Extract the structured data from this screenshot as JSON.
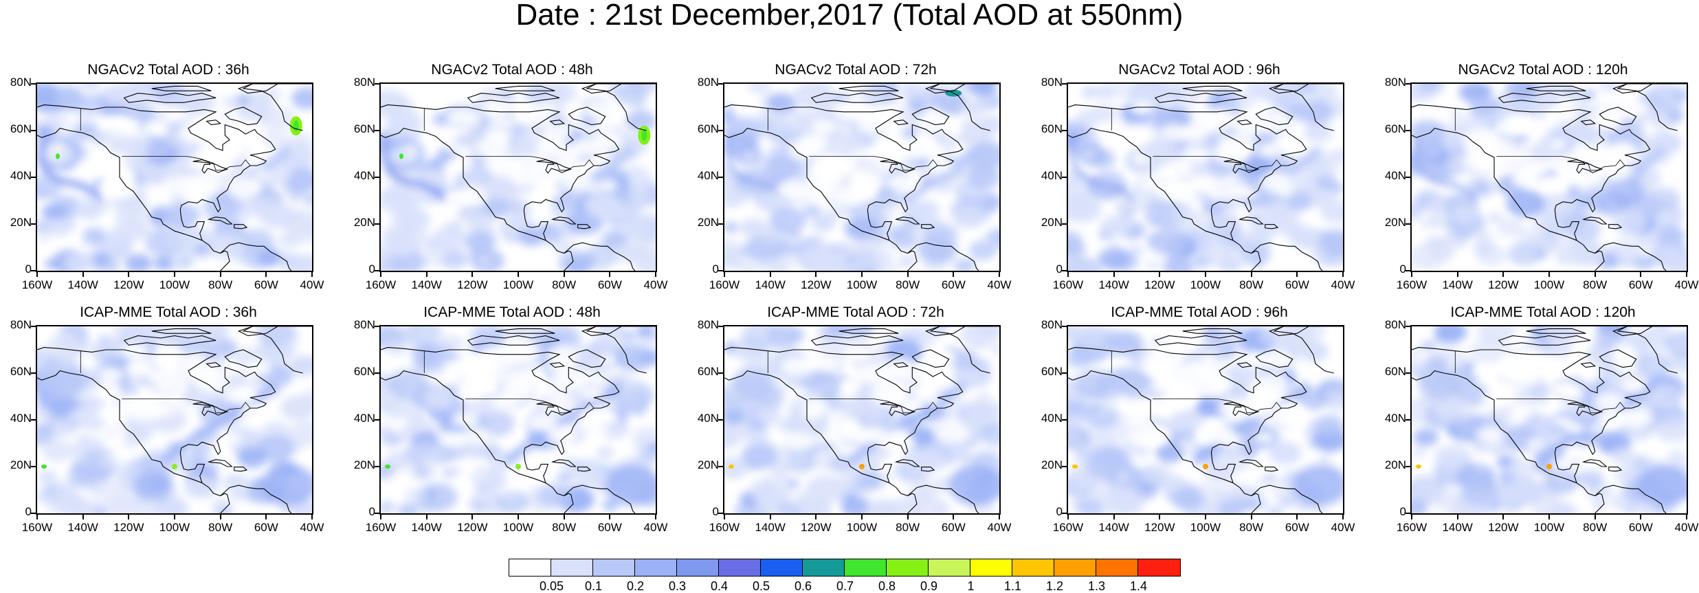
{
  "figure": {
    "title": "Date : 21st December,2017 (Total AOD at 550nm)"
  },
  "axes": {
    "lat_labels": [
      "80N",
      "60N",
      "40N",
      "20N",
      "0"
    ],
    "lon_labels": [
      "160W",
      "140W",
      "120W",
      "100W",
      "80W",
      "60W",
      "40W"
    ]
  },
  "panels": [
    {
      "title": "NGACv2 Total AOD : 36h",
      "model": "ngac",
      "hour": 36
    },
    {
      "title": "NGACv2 Total AOD : 48h",
      "model": "ngac",
      "hour": 48
    },
    {
      "title": "NGACv2 Total AOD : 72h",
      "model": "ngac",
      "hour": 72
    },
    {
      "title": "NGACv2 Total AOD : 96h",
      "model": "ngac",
      "hour": 96
    },
    {
      "title": "NGACv2 Total AOD : 120h",
      "model": "ngac",
      "hour": 120
    },
    {
      "title": "ICAP-MME Total AOD : 36h",
      "model": "icap",
      "hour": 36
    },
    {
      "title": "ICAP-MME Total AOD : 48h",
      "model": "icap",
      "hour": 48
    },
    {
      "title": "ICAP-MME Total AOD : 72h",
      "model": "icap",
      "hour": 72
    },
    {
      "title": "ICAP-MME Total AOD : 96h",
      "model": "icap",
      "hour": 96
    },
    {
      "title": "ICAP-MME Total AOD : 120h",
      "model": "icap",
      "hour": 120
    }
  ],
  "colorbar": {
    "labels": [
      "0.05",
      "0.1",
      "0.2",
      "0.3",
      "0.4",
      "0.5",
      "0.6",
      "0.7",
      "0.8",
      "0.9",
      "1",
      "1.1",
      "1.2",
      "1.3",
      "1.4"
    ],
    "colors": [
      "#ffffff",
      "#d9e1fb",
      "#b8c8f8",
      "#9bb2f6",
      "#7f98f0",
      "#6a6ee6",
      "#1a5ef2",
      "#159a9a",
      "#3fe52e",
      "#86f014",
      "#c8f55a",
      "#fefe00",
      "#fec500",
      "#ffa000",
      "#ff7300",
      "#ff2010"
    ]
  }
}
